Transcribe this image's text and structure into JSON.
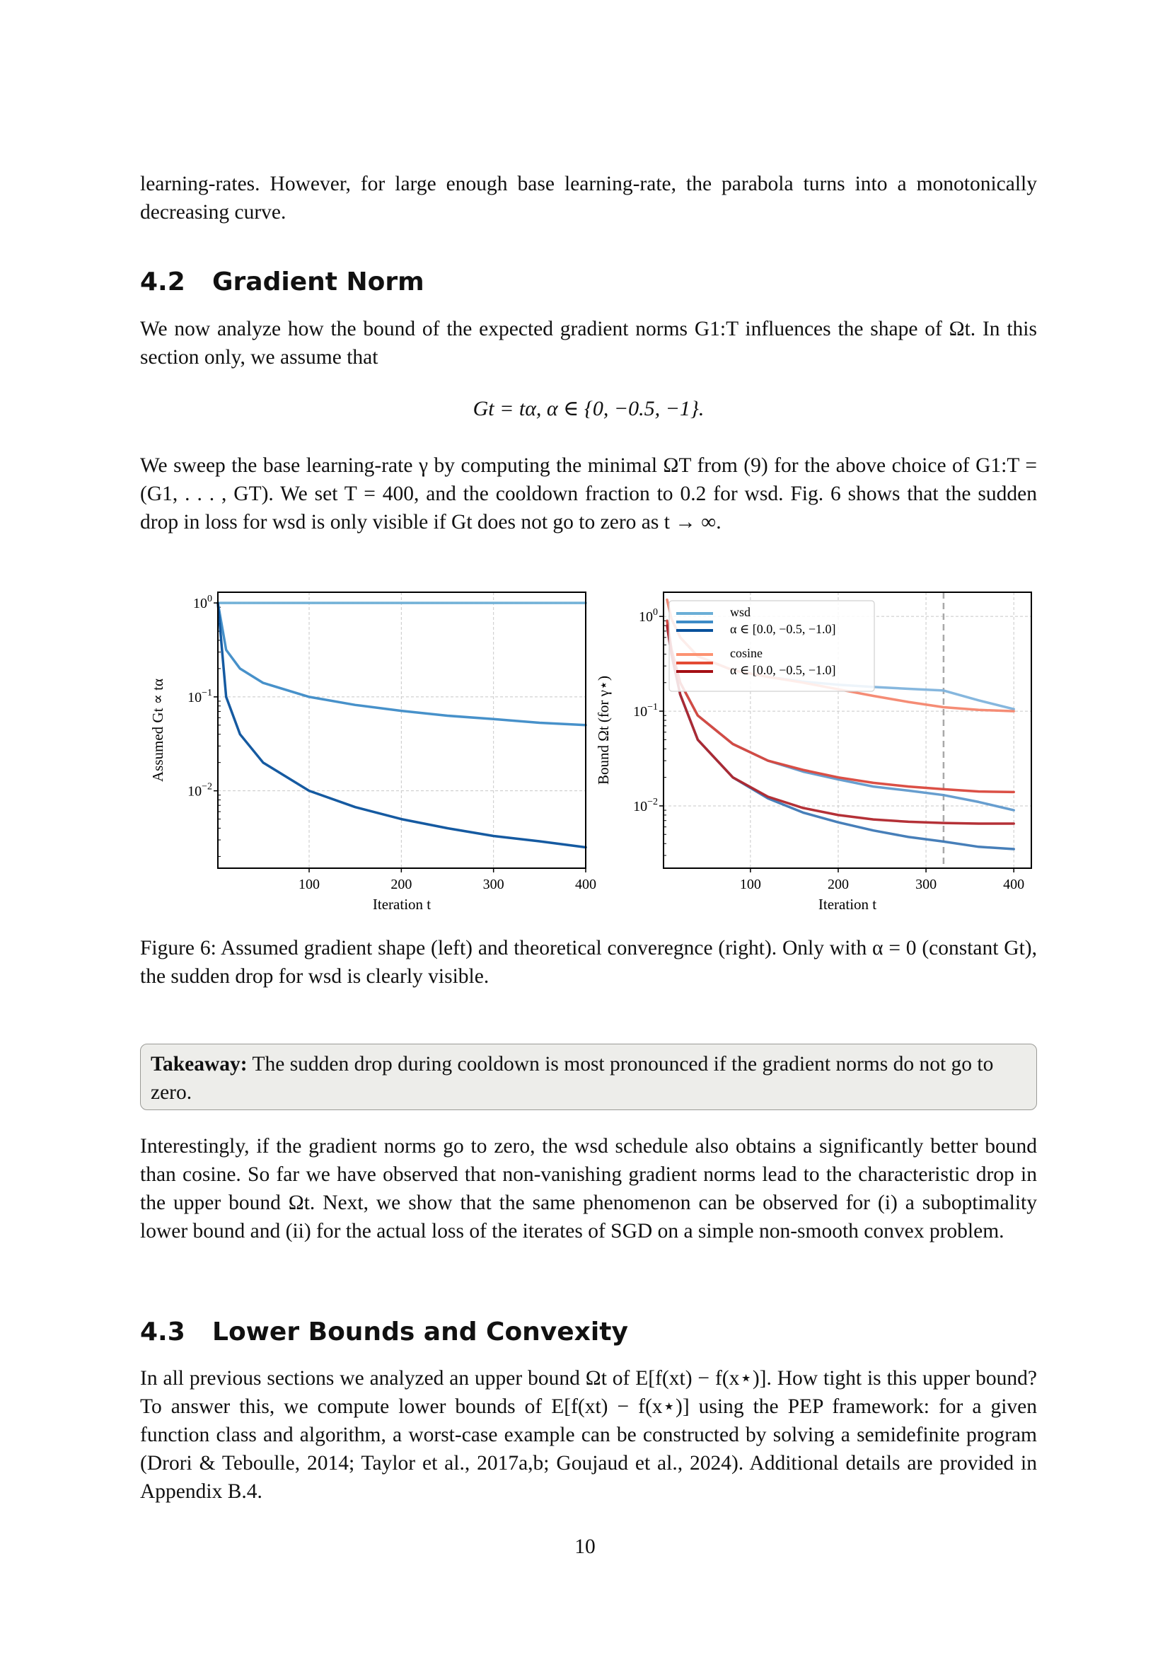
{
  "intro_para": "learning-rates. However, for large enough base learning-rate, the parabola turns into a monotonically decreasing curve.",
  "section_42": {
    "number": "4.2",
    "title": "Gradient Norm"
  },
  "para_42a": "We now analyze how the bound of the expected gradient norms G1:T influences the shape of Ωt. In this section only, we assume that",
  "equation": "Gt = tα,    α ∈ {0, −0.5, −1}.",
  "para_42b": "We sweep the base learning-rate γ by computing the minimal ΩT from (9) for the above choice of G1:T = (G1, . . . , GT). We set T = 400, and the cooldown fraction to 0.2 for wsd. Fig. 6 shows that the sudden drop in loss for wsd is only visible if Gt does not go to zero as t → ∞.",
  "caption": "Figure 6: Assumed gradient shape (left) and theoretical converegnce (right). Only with α = 0 (constant Gt), the sudden drop for wsd is clearly visible.",
  "takeaway": {
    "label": "Takeaway:",
    "text": "The sudden drop during cooldown is most pronounced if the gradient norms do not go to zero."
  },
  "para_43a": "Interestingly, if the gradient norms go to zero, the wsd schedule also obtains a significantly better bound than cosine. So far we have observed that non-vanishing gradient norms lead to the characteristic drop in the upper bound Ωt. Next, we show that the same phenomenon can be observed for (i) a suboptimality lower bound and (ii) for the actual loss of the iterates of SGD on a simple non-smooth convex problem.",
  "section_43": {
    "number": "4.3",
    "title": "Lower Bounds and Convexity"
  },
  "para_43b": "In all previous sections we analyzed an upper bound Ωt of E[f(xt) − f(x⋆)]. How tight is this upper bound? To answer this, we compute lower bounds of E[f(xt) − f(x⋆)] using the PEP framework: for a given function class and algorithm, a worst-case example can be constructed by solving a semidefinite program (Drori & Teboulle, 2014; Taylor et al., 2017a,b; Goujaud et al., 2024). Additional details are provided in Appendix B.4.",
  "page_number": "10",
  "chart_data": [
    {
      "type": "line",
      "ylabel": "Assumed Gt ∝ tα",
      "xlabel": "Iteration t",
      "xscale": "linear",
      "yscale": "log",
      "xlim": [
        1,
        400
      ],
      "ylim": [
        0.0015,
        1.3
      ],
      "xticks": [
        "100",
        "200",
        "300",
        "400"
      ],
      "yticks": [
        "10^0",
        "10^-1",
        "10^-2"
      ],
      "grid": true,
      "colors": [
        "#6baed6",
        "#3d8bc7",
        "#08519c"
      ],
      "series": [
        {
          "alpha": 0,
          "x": [
            1,
            400
          ],
          "y": [
            1.0,
            1.0
          ]
        },
        {
          "alpha": -0.5,
          "x": [
            1,
            10,
            25,
            50,
            100,
            150,
            200,
            250,
            300,
            350,
            400
          ],
          "y": [
            1.0,
            0.316,
            0.2,
            0.141,
            0.1,
            0.082,
            0.071,
            0.063,
            0.058,
            0.053,
            0.05
          ]
        },
        {
          "alpha": -1,
          "x": [
            1,
            10,
            25,
            50,
            100,
            150,
            200,
            250,
            300,
            350,
            400
          ],
          "y": [
            1.0,
            0.1,
            0.04,
            0.02,
            0.01,
            0.0067,
            0.005,
            0.004,
            0.0033,
            0.0029,
            0.0025
          ]
        }
      ]
    },
    {
      "type": "line",
      "ylabel": "Bound Ωt (for γ⋆)",
      "xlabel": "Iteration t",
      "xscale": "linear",
      "yscale": "log",
      "xlim": [
        1,
        420
      ],
      "ylim": [
        0.0022,
        1.8
      ],
      "xticks": [
        "100",
        "200",
        "300",
        "400"
      ],
      "yticks": [
        "10^0",
        "10^-1",
        "10^-2"
      ],
      "grid": true,
      "cooldown_start": 320,
      "legend": {
        "position": "top-left",
        "groups": [
          {
            "name": "wsd",
            "sub": "α ∈ [0.0, −0.5, −1.0]",
            "colors": [
              "#6baed6",
              "#3d8bc7",
              "#08519c"
            ]
          },
          {
            "name": "cosine",
            "sub": "α ∈ [0.0, −0.5, −1.0]",
            "colors": [
              "#fc9272",
              "#e34a33",
              "#a50f15"
            ]
          }
        ]
      },
      "series": [
        {
          "name": "wsd α=0",
          "color": "#7fb3dc",
          "x": [
            5,
            10,
            20,
            40,
            80,
            120,
            160,
            200,
            240,
            280,
            320,
            360,
            400
          ],
          "y": [
            1.5,
            0.95,
            0.6,
            0.38,
            0.27,
            0.23,
            0.205,
            0.19,
            0.18,
            0.172,
            0.165,
            0.13,
            0.105
          ]
        },
        {
          "name": "wsd α=-0.5",
          "color": "#5f99cc",
          "x": [
            5,
            10,
            20,
            40,
            80,
            120,
            160,
            200,
            240,
            280,
            320,
            360,
            400
          ],
          "y": [
            0.9,
            0.45,
            0.2,
            0.09,
            0.045,
            0.03,
            0.023,
            0.019,
            0.016,
            0.0145,
            0.013,
            0.011,
            0.009
          ]
        },
        {
          "name": "wsd α=-1",
          "color": "#3d78b5",
          "x": [
            5,
            10,
            20,
            40,
            80,
            120,
            160,
            200,
            240,
            280,
            320,
            360,
            400
          ],
          "y": [
            0.8,
            0.4,
            0.15,
            0.05,
            0.02,
            0.012,
            0.0085,
            0.0067,
            0.0055,
            0.0047,
            0.0042,
            0.0037,
            0.0035
          ]
        },
        {
          "name": "cosine α=0",
          "color": "#f4866e",
          "x": [
            5,
            10,
            20,
            40,
            80,
            120,
            160,
            200,
            240,
            280,
            320,
            360,
            400
          ],
          "y": [
            1.5,
            0.95,
            0.6,
            0.38,
            0.27,
            0.23,
            0.2,
            0.17,
            0.145,
            0.125,
            0.11,
            0.103,
            0.1
          ]
        },
        {
          "name": "cosine α=-0.5",
          "color": "#d9473c",
          "x": [
            5,
            10,
            20,
            40,
            80,
            120,
            160,
            200,
            240,
            280,
            320,
            360,
            400
          ],
          "y": [
            0.9,
            0.45,
            0.2,
            0.09,
            0.045,
            0.03,
            0.024,
            0.02,
            0.0175,
            0.016,
            0.015,
            0.0142,
            0.014
          ]
        },
        {
          "name": "cosine α=-1",
          "color": "#b0262c",
          "x": [
            5,
            10,
            20,
            40,
            80,
            120,
            160,
            200,
            240,
            280,
            320,
            360,
            400
          ],
          "y": [
            0.8,
            0.4,
            0.15,
            0.05,
            0.02,
            0.0125,
            0.0095,
            0.008,
            0.0072,
            0.0068,
            0.0066,
            0.0065,
            0.0065
          ]
        }
      ]
    }
  ]
}
